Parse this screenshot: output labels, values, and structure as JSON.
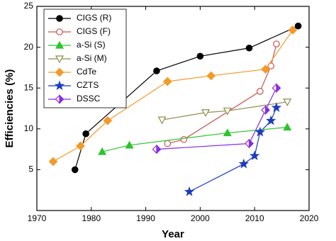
{
  "chart_data": {
    "type": "line",
    "x_label": "Year",
    "y_label": "Efficiencies (%)",
    "xlim": [
      1970,
      2020
    ],
    "xticks": [
      1970,
      1980,
      1990,
      2000,
      2010,
      2020
    ],
    "ylim": [
      0,
      25
    ],
    "yticks": [
      5,
      10,
      15,
      20,
      25
    ],
    "legend": "upper left",
    "series": [
      {
        "name": "CIGS (R)",
        "color": "#000000",
        "marker": "circle",
        "filled": true,
        "x": [
          1977,
          1979,
          1992,
          2000,
          2009,
          2018
        ],
        "values": [
          5.0,
          9.4,
          17.1,
          18.9,
          19.9,
          22.6
        ]
      },
      {
        "name": "CIGS (F)",
        "color": "#c9544f",
        "marker": "circle",
        "filled": false,
        "x": [
          1994,
          1997,
          2011,
          2013,
          2014
        ],
        "values": [
          8.2,
          8.7,
          14.6,
          17.7,
          20.4
        ]
      },
      {
        "name": "a-Si (S)",
        "color": "#2bc52b",
        "marker": "triangle",
        "filled": true,
        "x": [
          1982,
          1987,
          2005,
          2016
        ],
        "values": [
          7.2,
          8.0,
          9.5,
          10.2
        ]
      },
      {
        "name": "a-Si (M)",
        "color": "#8d8d4a",
        "marker": "triangle-down",
        "filled": false,
        "x": [
          1993,
          2001,
          2005,
          2016
        ],
        "values": [
          11.1,
          12.0,
          12.2,
          13.3
        ]
      },
      {
        "name": "CdTe",
        "color": "#f39a2a",
        "marker": "diamond",
        "filled": true,
        "x": [
          1973,
          1978,
          1983,
          1994,
          2002,
          2012,
          2017
        ],
        "values": [
          6.0,
          7.9,
          11.0,
          15.8,
          16.5,
          17.3,
          22.1
        ]
      },
      {
        "name": "CZTS",
        "color": "#1c3bbf",
        "marker": "star",
        "filled": true,
        "x": [
          1998,
          2008,
          2010,
          2011,
          2013,
          2014
        ],
        "values": [
          2.3,
          5.7,
          6.7,
          9.6,
          11.0,
          12.6
        ]
      },
      {
        "name": "DSSC",
        "color": "#8a2be2",
        "marker": "half-diamond",
        "filled": true,
        "x": [
          1992,
          2009,
          2012,
          2014
        ],
        "values": [
          7.5,
          8.2,
          12.3,
          15.0
        ]
      }
    ]
  }
}
